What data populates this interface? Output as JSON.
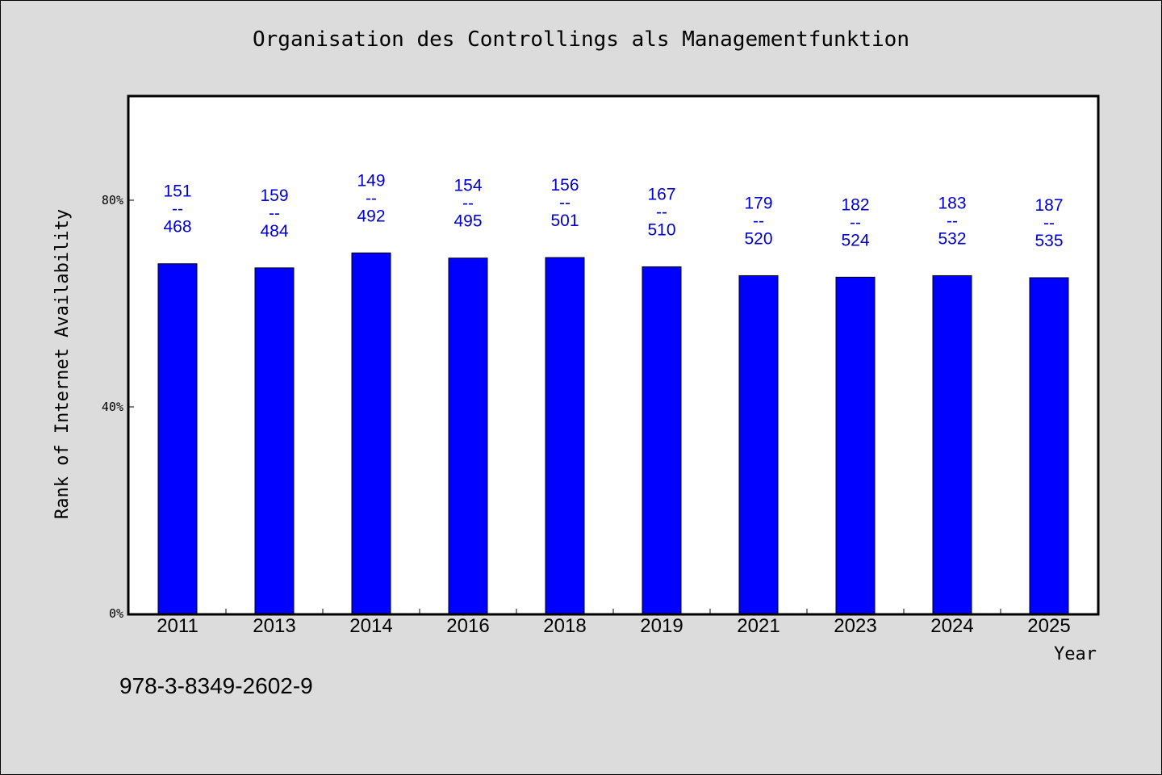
{
  "chart_data": {
    "type": "bar",
    "title": "Organisation des Controllings als Managementfunktion",
    "xlabel": "Year",
    "ylabel": "Rank of Internet Availability",
    "categories": [
      "2011",
      "2013",
      "2014",
      "2016",
      "2018",
      "2019",
      "2021",
      "2023",
      "2024",
      "2025"
    ],
    "values": [
      0.677,
      0.669,
      0.698,
      0.688,
      0.689,
      0.671,
      0.654,
      0.651,
      0.654,
      0.65
    ],
    "data_labels": [
      {
        "top": "151",
        "mid": "--",
        "bottom": "468"
      },
      {
        "top": "159",
        "mid": "--",
        "bottom": "484"
      },
      {
        "top": "149",
        "mid": "--",
        "bottom": "492"
      },
      {
        "top": "154",
        "mid": "--",
        "bottom": "495"
      },
      {
        "top": "156",
        "mid": "--",
        "bottom": "501"
      },
      {
        "top": "167",
        "mid": "--",
        "bottom": "510"
      },
      {
        "top": "179",
        "mid": "--",
        "bottom": "520"
      },
      {
        "top": "182",
        "mid": "--",
        "bottom": "524"
      },
      {
        "top": "183",
        "mid": "--",
        "bottom": "532"
      },
      {
        "top": "187",
        "mid": "--",
        "bottom": "535"
      }
    ],
    "ylim": [
      0,
      1
    ],
    "yticks": [
      {
        "value": 0,
        "label": "0%"
      },
      {
        "value": 0.4,
        "label": "40%"
      },
      {
        "value": 0.8,
        "label": "80%"
      }
    ],
    "grid": false,
    "colors": {
      "bar": "#0000ff",
      "bar_edge": "#000000",
      "label": "#0000cc",
      "plot_bg": "#ffffff",
      "page_bg": "#dcdcdc"
    }
  },
  "footer": {
    "isbn": "978-3-8349-2602-9"
  }
}
